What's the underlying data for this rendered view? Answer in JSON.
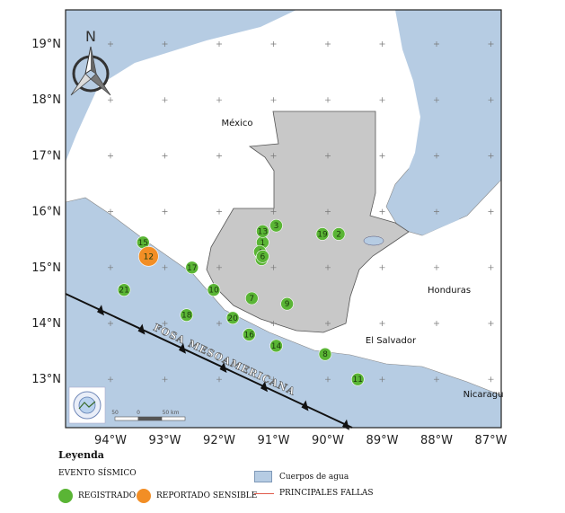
{
  "map": {
    "lat_labels": [
      "19°N",
      "18°N",
      "17°N",
      "16°N",
      "15°N",
      "14°N",
      "13°N"
    ],
    "lon_labels": [
      "94°W",
      "93°W",
      "92°W",
      "91°W",
      "90°W",
      "89°W",
      "88°W",
      "87°W"
    ],
    "north_arrow_label": "N",
    "places": {
      "mexico": "México",
      "honduras": "Honduras",
      "el_salvador": "El Salvador",
      "nicaragua": "Nicaragu"
    },
    "trench_label": "FOSA MESOAMERICANA",
    "scale_labels": [
      "50",
      "0",
      "50 km"
    ],
    "colors": {
      "water": "#b6cce3",
      "land": "#ffffff",
      "guatemala": "#c8c8c8",
      "registered": "#5ab535",
      "reported": "#f28e25",
      "fault": "#e05a4a",
      "trench": "#111111"
    },
    "events": [
      {
        "id": "1",
        "lon": -91.2,
        "lat": 15.45,
        "type": "registrado"
      },
      {
        "id": "2",
        "lon": -89.8,
        "lat": 15.6,
        "type": "registrado"
      },
      {
        "id": "3",
        "lon": -90.95,
        "lat": 15.75,
        "type": "registrado"
      },
      {
        "id": "4",
        "lon": -91.25,
        "lat": 15.28,
        "type": "registrado"
      },
      {
        "id": "5",
        "lon": -91.22,
        "lat": 15.15,
        "type": "registrado"
      },
      {
        "id": "6",
        "lon": -91.2,
        "lat": 15.2,
        "type": "registrado"
      },
      {
        "id": "7",
        "lon": -91.4,
        "lat": 14.45,
        "type": "registrado"
      },
      {
        "id": "8",
        "lon": -90.05,
        "lat": 13.45,
        "type": "registrado"
      },
      {
        "id": "9",
        "lon": -90.75,
        "lat": 14.35,
        "type": "registrado"
      },
      {
        "id": "10",
        "lon": -92.1,
        "lat": 14.6,
        "type": "registrado"
      },
      {
        "id": "11",
        "lon": -89.45,
        "lat": 13.0,
        "type": "registrado"
      },
      {
        "id": "13",
        "lon": -91.2,
        "lat": 15.65,
        "type": "registrado"
      },
      {
        "id": "14",
        "lon": -90.95,
        "lat": 13.6,
        "type": "registrado"
      },
      {
        "id": "15",
        "lon": -93.4,
        "lat": 15.45,
        "type": "registrado"
      },
      {
        "id": "16",
        "lon": -91.45,
        "lat": 13.8,
        "type": "registrado"
      },
      {
        "id": "17",
        "lon": -92.5,
        "lat": 15.0,
        "type": "registrado"
      },
      {
        "id": "18",
        "lon": -92.6,
        "lat": 14.15,
        "type": "registrado"
      },
      {
        "id": "19",
        "lon": -90.1,
        "lat": 15.6,
        "type": "registrado"
      },
      {
        "id": "20",
        "lon": -91.75,
        "lat": 14.1,
        "type": "registrado"
      },
      {
        "id": "21",
        "lon": -93.75,
        "lat": 14.6,
        "type": "registrado"
      },
      {
        "id": "12",
        "lon": -93.3,
        "lat": 15.2,
        "type": "reportado"
      }
    ]
  },
  "legend": {
    "title": "Leyenda",
    "subtitle": "EVENTO SÍSMICO",
    "registered_label": "REGISTRADO",
    "reported_label": "REPORTADO SENSIBLE",
    "faults_label": "PRINCIPALES FALLAS",
    "water_label": "Cuerpos de agua"
  }
}
